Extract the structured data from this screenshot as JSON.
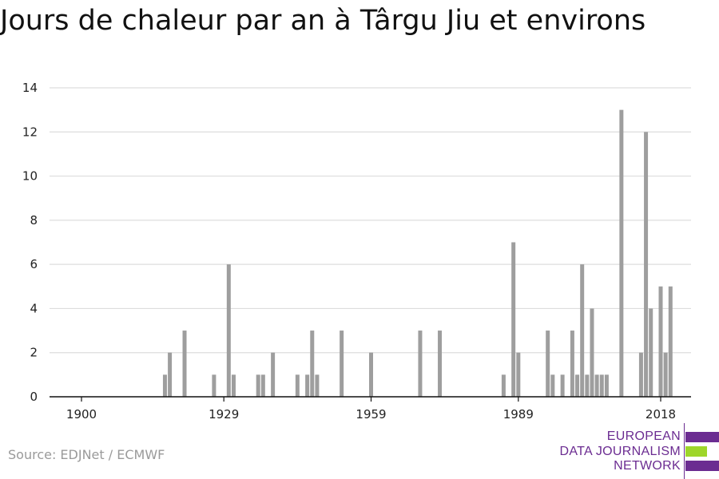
{
  "title": "Jours de chaleur par an à Târgu Jiu et environs",
  "source": "Source: EDJNet / ECMWF",
  "logo": {
    "lines": [
      "EUROPEAN",
      "DATA JOURNALISM",
      "NETWORK"
    ]
  },
  "colors": {
    "bar": "#9e9e9e",
    "grid": "#dddddd",
    "axis": "#111111",
    "logo_purple": "#6b2c91",
    "logo_green": "#9ed62a"
  },
  "chart_data": {
    "type": "bar",
    "title": "Jours de chaleur par an à Târgu Jiu et environs",
    "xlabel": "",
    "ylabel": "",
    "xlim": [
      1900,
      2018
    ],
    "ylim": [
      0,
      14
    ],
    "x_ticks": [
      1900,
      1929,
      1959,
      1989,
      2018
    ],
    "y_ticks": [
      0,
      2,
      4,
      6,
      8,
      10,
      12,
      14
    ],
    "grid": true,
    "points": [
      {
        "year": 1917,
        "value": 1
      },
      {
        "year": 1918,
        "value": 2
      },
      {
        "year": 1921,
        "value": 3
      },
      {
        "year": 1927,
        "value": 1
      },
      {
        "year": 1930,
        "value": 6
      },
      {
        "year": 1931,
        "value": 1
      },
      {
        "year": 1936,
        "value": 1
      },
      {
        "year": 1937,
        "value": 1
      },
      {
        "year": 1939,
        "value": 2
      },
      {
        "year": 1944,
        "value": 1
      },
      {
        "year": 1946,
        "value": 1
      },
      {
        "year": 1947,
        "value": 3
      },
      {
        "year": 1948,
        "value": 1
      },
      {
        "year": 1953,
        "value": 3
      },
      {
        "year": 1959,
        "value": 2
      },
      {
        "year": 1969,
        "value": 3
      },
      {
        "year": 1973,
        "value": 3
      },
      {
        "year": 1986,
        "value": 1
      },
      {
        "year": 1988,
        "value": 7
      },
      {
        "year": 1989,
        "value": 2
      },
      {
        "year": 1995,
        "value": 3
      },
      {
        "year": 1996,
        "value": 1
      },
      {
        "year": 1998,
        "value": 1
      },
      {
        "year": 2000,
        "value": 3
      },
      {
        "year": 2001,
        "value": 1
      },
      {
        "year": 2002,
        "value": 6
      },
      {
        "year": 2003,
        "value": 1
      },
      {
        "year": 2004,
        "value": 4
      },
      {
        "year": 2005,
        "value": 1
      },
      {
        "year": 2006,
        "value": 1
      },
      {
        "year": 2007,
        "value": 1
      },
      {
        "year": 2010,
        "value": 13
      },
      {
        "year": 2014,
        "value": 2
      },
      {
        "year": 2015,
        "value": 12
      },
      {
        "year": 2016,
        "value": 4
      },
      {
        "year": 2018,
        "value": 5
      },
      {
        "year": 2019,
        "value": 2
      },
      {
        "year": 2020,
        "value": 5
      }
    ]
  }
}
